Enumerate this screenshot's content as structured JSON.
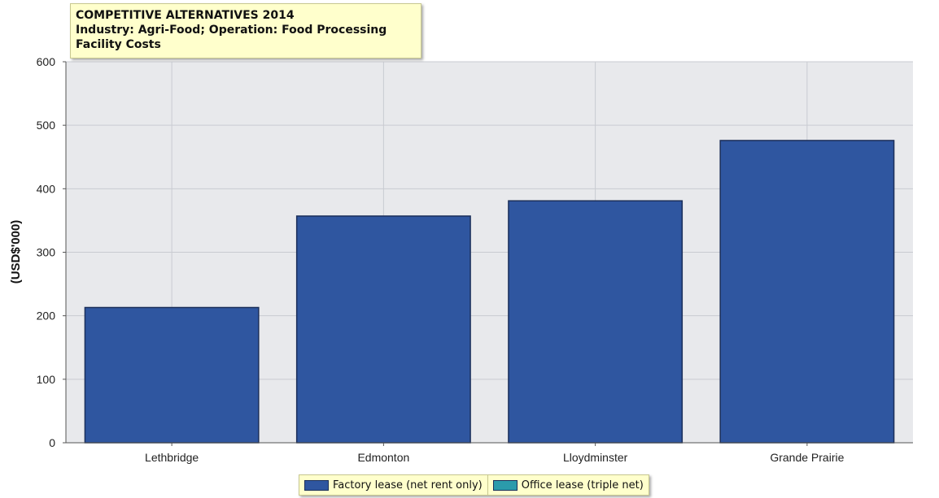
{
  "title_lines": [
    "COMPETITIVE ALTERNATIVES 2014",
    "Industry: Agri-Food; Operation: Food Processing",
    "Facility Costs"
  ],
  "colors": {
    "plot_background": "#e8e9ec",
    "grid": "#c9cbd1",
    "factory_lease": "#2f56a0",
    "office_lease": "#2b9bab",
    "legend_background": "#ffffcc"
  },
  "chart_data": {
    "type": "bar",
    "ylabel": "(USD$'000)",
    "xlabel": "",
    "ylim": [
      0,
      600
    ],
    "y_ticks": [
      0,
      100,
      200,
      300,
      400,
      500,
      600
    ],
    "grid": true,
    "legend_position": "bottom-center",
    "categories": [
      "Lethbridge",
      "Edmonton",
      "Lloydminster",
      "Grande Prairie"
    ],
    "series": [
      {
        "name": "Factory lease (net rent only)",
        "values": [
          213,
          357,
          381,
          476
        ]
      },
      {
        "name": "Office lease (triple net)",
        "values": [
          0,
          0,
          0,
          0
        ]
      }
    ]
  }
}
